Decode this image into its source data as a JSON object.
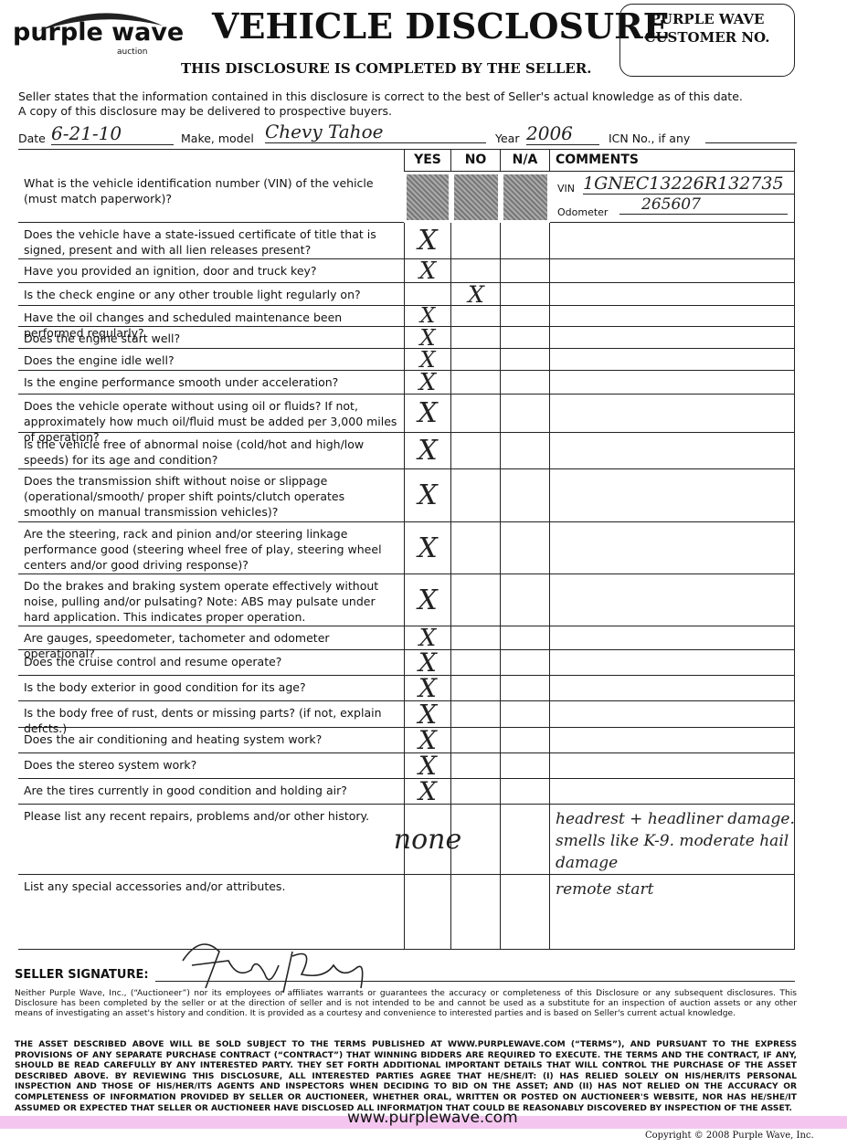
{
  "header": {
    "logo": "purple wave",
    "logo_sub": "auction",
    "title": "VEHICLE DISCLOSURE",
    "subtitle": "THIS DISCLOSURE IS COMPLETED BY THE SELLER.",
    "customer_box": "PURPLE WAVE CUSTOMER NO."
  },
  "intro": [
    "Seller states that the information contained in this disclosure is correct to the best of Seller's actual knowledge as of this date.",
    "A copy of this disclosure may be delivered to prospective buyers."
  ],
  "fields": {
    "date_label": "Date",
    "date": "6-21-10",
    "make_label": "Make, model",
    "make": "Chevy Tahoe",
    "year_label": "Year",
    "year": "2006",
    "icn_label": "ICN No., if any"
  },
  "table": {
    "columns": [
      "YES",
      "NO",
      "N/A",
      "COMMENTS"
    ],
    "rows": [
      {
        "question": "What is the vehicle identification number (VIN) of the vehicle (must match paperwork)?",
        "vin_label": "VIN",
        "vin": "1GNEC13226R132735",
        "odometer_label": "Odometer",
        "odometer": "265607"
      },
      {
        "question": "Does the vehicle have a state-issued certificate of title that is signed, present and with all lien releases present?",
        "yes": "X"
      },
      {
        "question": "Have you provided an ignition, door and truck key?",
        "yes": "X"
      },
      {
        "question": "Is the check engine or any other trouble light regularly on?",
        "no": "X"
      },
      {
        "question": "Have the oil changes and scheduled maintenance been performed regularly?",
        "yes": "X"
      },
      {
        "question": "Does the engine start well?",
        "yes": "X"
      },
      {
        "question": "Does the engine idle well?",
        "yes": "X"
      },
      {
        "question": "Is the engine performance smooth under acceleration?",
        "yes": "X"
      },
      {
        "question": "Does the vehicle operate without using oil or fluids? If not, approximately how much oil/fluid must be added per 3,000 miles of operation?",
        "yes": "X"
      },
      {
        "question": "Is the vehicle free of abnormal noise (cold/hot and high/low speeds) for its age and condition?",
        "yes": "X"
      },
      {
        "question": "Does the transmission shift without noise or slippage (operational/smooth/ proper shift points/clutch operates smoothly on manual transmission vehicles)?",
        "yes": "X"
      },
      {
        "question": "Are the steering, rack and pinion and/or steering linkage performance good (steering wheel free of play, steering wheel centers and/or good driving response)?",
        "yes": "X"
      },
      {
        "question": "Do the brakes and braking system operate effectively without noise, pulling and/or pulsating? Note: ABS may pulsate under hard application. This indicates proper operation.",
        "yes": "X"
      },
      {
        "question": "Are gauges, speedometer, tachometer and odometer operational?",
        "yes": "X"
      },
      {
        "question": "Does the cruise control and resume operate?",
        "yes": "X"
      },
      {
        "question": "Is the body exterior in good condition for its age?",
        "yes": "X"
      },
      {
        "question": "Is the body free of rust, dents or missing parts? (if not, explain defcts.)",
        "yes": "X"
      },
      {
        "question": "Does the air conditioning and heating system work?",
        "yes": "X"
      },
      {
        "question": "Does the stereo system work?",
        "yes": "X"
      },
      {
        "question": "Are the tires currently in good condition and holding air?",
        "yes": "X"
      },
      {
        "question": "Please list any recent repairs, problems and/or other history.",
        "yes": "none",
        "comments": "headrest + headliner damage. smells like K-9. moderate hail damage"
      },
      {
        "question": "List any special accessories and/or attributes.",
        "comments": "remote start"
      }
    ]
  },
  "signature_label": "SELLER SIGNATURE:",
  "disclaimer": [
    "Neither Purple Wave, Inc., (“Auctioneer”) nor its employees or affiliates warrants or guarantees the accuracy or completeness of this Disclosure or any subsequent disclosures. This Disclosure has been completed by the seller or at the direction of seller and is not intended to be and cannot be used as a substitute for an inspection of auction assets or any other means of investigating an asset's history and condition. It is provided as a courtesy and convenience to interested parties and is based on Seller's current actual knowledge.",
    "THE ASSET DESCRIBED ABOVE WILL BE SOLD SUBJECT TO THE TERMS PUBLISHED AT WWW.PURPLEWAVE.COM (“TERMS”), AND PURSUANT TO THE EXPRESS PROVISIONS OF ANY SEPARATE PURCHASE CONTRACT (“CONTRACT”) THAT WINNING BIDDERS ARE REQUIRED TO EXECUTE. THE TERMS AND THE CONTRACT, IF ANY, SHOULD BE READ CAREFULLY BY ANY INTERESTED PARTY. THEY SET FORTH ADDITIONAL IMPORTANT DETAILS THAT WILL CONTROL THE PURCHASE OF THE ASSET DESCRIBED ABOVE. BY REVIEWING THIS DISCLOSURE, ALL INTERESTED PARTIES AGREE THAT HE/SHE/IT: (I) HAS RELIED SOLELY ON HIS/HER/ITS PERSONAL INSPECTION AND THOSE OF HIS/HER/ITS AGENTS AND INSPECTORS WHEN DECIDING TO BID ON THE ASSET; AND (II) HAS NOT RELIED ON THE ACCURACY OR COMPLETENESS OF INFORMATION PROVIDED BY SELLER OR AUCTIONEER, WHETHER ORAL, WRITTEN OR POSTED ON AUCTIONEER'S WEBSITE, NOR HAS HE/SHE/IT ASSUMED OR EXPECTED THAT SELLER OR AUCTIONEER HAVE DISCLOSED ALL INFORMATION THAT COULD BE REASONABLY DISCOVERED BY INSPECTION OF THE ASSET."
  ],
  "footer": {
    "url": "www.purplewave.com",
    "copyright": "Copyright © 2008 Purple Wave, Inc."
  }
}
